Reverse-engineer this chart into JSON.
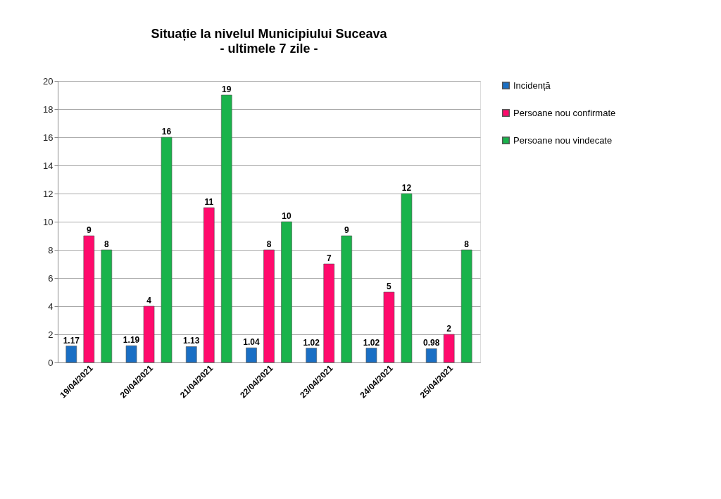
{
  "chart_data": {
    "type": "bar",
    "title": "Situație la nivelul Municipiului Suceava",
    "subtitle": "- ultimele 7 zile -",
    "categories": [
      "19/04/2021",
      "20/04/2021",
      "21/04/2021",
      "22/04/2021",
      "23/04/2021",
      "24/04/2021",
      "25/04/2021"
    ],
    "series": [
      {
        "name": "Incidență",
        "color": "#1a6fc4",
        "values": [
          1.17,
          1.19,
          1.13,
          1.04,
          1.02,
          1.02,
          0.98
        ]
      },
      {
        "name": "Persoane nou confirmate",
        "color": "#ff0a6c",
        "values": [
          9,
          4,
          11,
          8,
          7,
          5,
          2
        ]
      },
      {
        "name": "Persoane nou vindecate",
        "color": "#19b34b",
        "values": [
          8,
          16,
          19,
          10,
          9,
          12,
          8
        ]
      }
    ],
    "ylim": [
      0,
      20
    ],
    "yticks": [
      0,
      2,
      4,
      6,
      8,
      10,
      12,
      14,
      16,
      18,
      20
    ],
    "grid": "y",
    "legend": "right",
    "data_labels": true
  }
}
